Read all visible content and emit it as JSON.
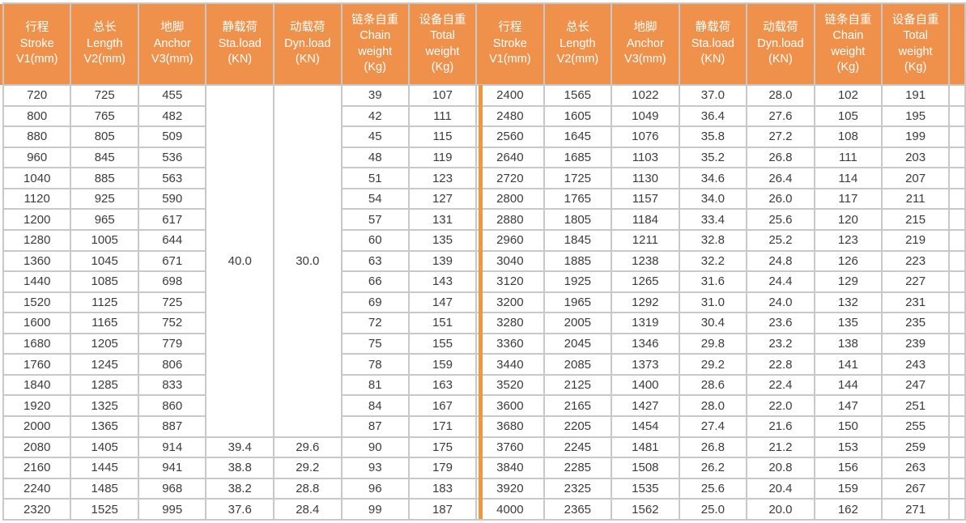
{
  "colors": {
    "header_bg": "#F0914B",
    "header_text": "#FFFFFF",
    "border_gray": "#C8C8C8",
    "divider_orange": "#F5953B",
    "cell_text": "#3B3B3B",
    "page_bg": "#FFFFFF"
  },
  "table": {
    "column_headers": [
      "行程\nStroke\nV1(mm)",
      "总长\nLength\nV2(mm)",
      "地脚\nAnchor\nV3(mm)",
      "静载荷\nSta.load\n(KN)",
      "动载荷\nDyn.load\n(KN)",
      "链条自重\nChain\nweight\n(Kg)",
      "设备自重\nTotal\nweight\n(Kg)"
    ],
    "merged_left": {
      "sta_load": "40.0",
      "dyn_load": "30.0",
      "span": 17
    },
    "left_rows": [
      [
        "720",
        "725",
        "455",
        "",
        "",
        "39",
        "107"
      ],
      [
        "800",
        "765",
        "482",
        "",
        "",
        "42",
        "111"
      ],
      [
        "880",
        "805",
        "509",
        "",
        "",
        "45",
        "115"
      ],
      [
        "960",
        "845",
        "536",
        "",
        "",
        "48",
        "119"
      ],
      [
        "1040",
        "885",
        "563",
        "",
        "",
        "51",
        "123"
      ],
      [
        "1120",
        "925",
        "590",
        "",
        "",
        "54",
        "127"
      ],
      [
        "1200",
        "965",
        "617",
        "",
        "",
        "57",
        "131"
      ],
      [
        "1280",
        "1005",
        "644",
        "",
        "",
        "60",
        "135"
      ],
      [
        "1360",
        "1045",
        "671",
        "",
        "",
        "63",
        "139"
      ],
      [
        "1440",
        "1085",
        "698",
        "",
        "",
        "66",
        "143"
      ],
      [
        "1520",
        "1125",
        "725",
        "",
        "",
        "69",
        "147"
      ],
      [
        "1600",
        "1165",
        "752",
        "",
        "",
        "72",
        "151"
      ],
      [
        "1680",
        "1205",
        "779",
        "",
        "",
        "75",
        "155"
      ],
      [
        "1760",
        "1245",
        "806",
        "",
        "",
        "78",
        "159"
      ],
      [
        "1840",
        "1285",
        "833",
        "",
        "",
        "81",
        "163"
      ],
      [
        "1920",
        "1325",
        "860",
        "",
        "",
        "84",
        "167"
      ],
      [
        "2000",
        "1365",
        "887",
        "",
        "",
        "87",
        "171"
      ],
      [
        "2080",
        "1405",
        "914",
        "39.4",
        "29.6",
        "90",
        "175"
      ],
      [
        "2160",
        "1445",
        "941",
        "38.8",
        "29.2",
        "93",
        "179"
      ],
      [
        "2240",
        "1485",
        "968",
        "38.2",
        "28.8",
        "96",
        "183"
      ],
      [
        "2320",
        "1525",
        "995",
        "37.6",
        "28.4",
        "99",
        "187"
      ]
    ],
    "right_rows": [
      [
        "2400",
        "1565",
        "1022",
        "37.0",
        "28.0",
        "102",
        "191"
      ],
      [
        "2480",
        "1605",
        "1049",
        "36.4",
        "27.6",
        "105",
        "195"
      ],
      [
        "2560",
        "1645",
        "1076",
        "35.8",
        "27.2",
        "108",
        "199"
      ],
      [
        "2640",
        "1685",
        "1103",
        "35.2",
        "26.8",
        "111",
        "203"
      ],
      [
        "2720",
        "1725",
        "1130",
        "34.6",
        "26.4",
        "114",
        "207"
      ],
      [
        "2800",
        "1765",
        "1157",
        "34.0",
        "26.0",
        "117",
        "211"
      ],
      [
        "2880",
        "1805",
        "1184",
        "33.4",
        "25.6",
        "120",
        "215"
      ],
      [
        "2960",
        "1845",
        "1211",
        "32.8",
        "25.2",
        "123",
        "219"
      ],
      [
        "3040",
        "1885",
        "1238",
        "32.2",
        "24.8",
        "126",
        "223"
      ],
      [
        "3120",
        "1925",
        "1265",
        "31.6",
        "24.4",
        "129",
        "227"
      ],
      [
        "3200",
        "1965",
        "1292",
        "31.0",
        "24.0",
        "132",
        "231"
      ],
      [
        "3280",
        "2005",
        "1319",
        "30.4",
        "23.6",
        "135",
        "235"
      ],
      [
        "3360",
        "2045",
        "1346",
        "29.8",
        "23.2",
        "138",
        "239"
      ],
      [
        "3440",
        "2085",
        "1373",
        "29.2",
        "22.8",
        "141",
        "243"
      ],
      [
        "3520",
        "2125",
        "1400",
        "28.6",
        "22.4",
        "144",
        "247"
      ],
      [
        "3600",
        "2165",
        "1427",
        "28.0",
        "22.0",
        "147",
        "251"
      ],
      [
        "3680",
        "2205",
        "1454",
        "27.4",
        "21.6",
        "150",
        "255"
      ],
      [
        "3760",
        "2245",
        "1481",
        "26.8",
        "21.2",
        "153",
        "259"
      ],
      [
        "3840",
        "2285",
        "1508",
        "26.2",
        "20.8",
        "156",
        "263"
      ],
      [
        "3920",
        "2325",
        "1535",
        "25.6",
        "20.4",
        "159",
        "267"
      ],
      [
        "4000",
        "2365",
        "1562",
        "25.0",
        "20.0",
        "162",
        "271"
      ]
    ]
  }
}
